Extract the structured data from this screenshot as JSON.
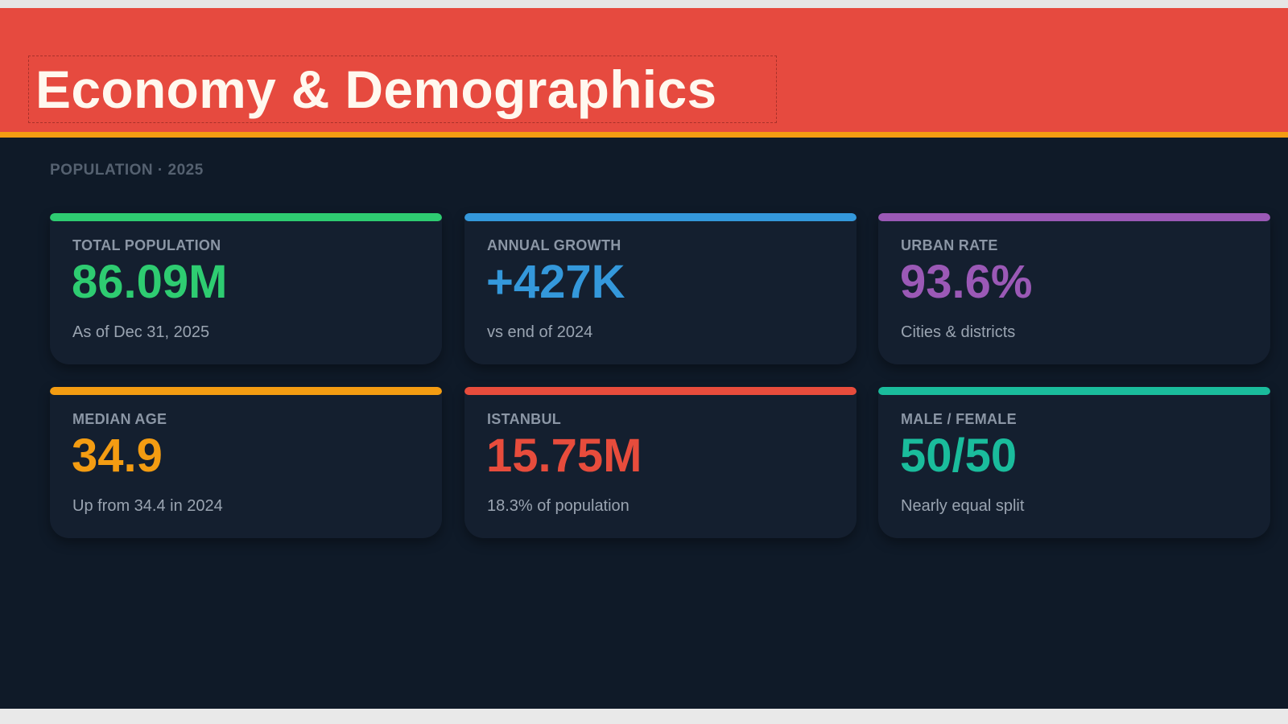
{
  "header": {
    "title": "Economy & Demographics"
  },
  "section": {
    "label": "POPULATION · 2025"
  },
  "cards": [
    {
      "label": "TOTAL POPULATION",
      "value": "86.09M",
      "subtitle": "As of Dec 31, 2025",
      "accent": "#2ecc71"
    },
    {
      "label": "ANNUAL GROWTH",
      "value": "+427K",
      "subtitle": "vs end of 2024",
      "accent": "#3498db"
    },
    {
      "label": "URBAN RATE",
      "value": "93.6%",
      "subtitle": "Cities & districts",
      "accent": "#9b59b6"
    },
    {
      "label": "MEDIAN AGE",
      "value": "34.9",
      "subtitle": "Up from 34.4 in 2024",
      "accent": "#f39c12"
    },
    {
      "label": "ISTANBUL",
      "value": "15.75M",
      "subtitle": "18.3% of population",
      "accent": "#e74c3c"
    },
    {
      "label": "MALE / FEMALE",
      "value": "50/50",
      "subtitle": "Nearly equal split",
      "accent": "#1abc9c"
    }
  ],
  "colors": {
    "header_background": "#e64a3f",
    "header_underline": "#f39c12",
    "content_background": "#0f1a28",
    "card_background": "#141f2f"
  }
}
